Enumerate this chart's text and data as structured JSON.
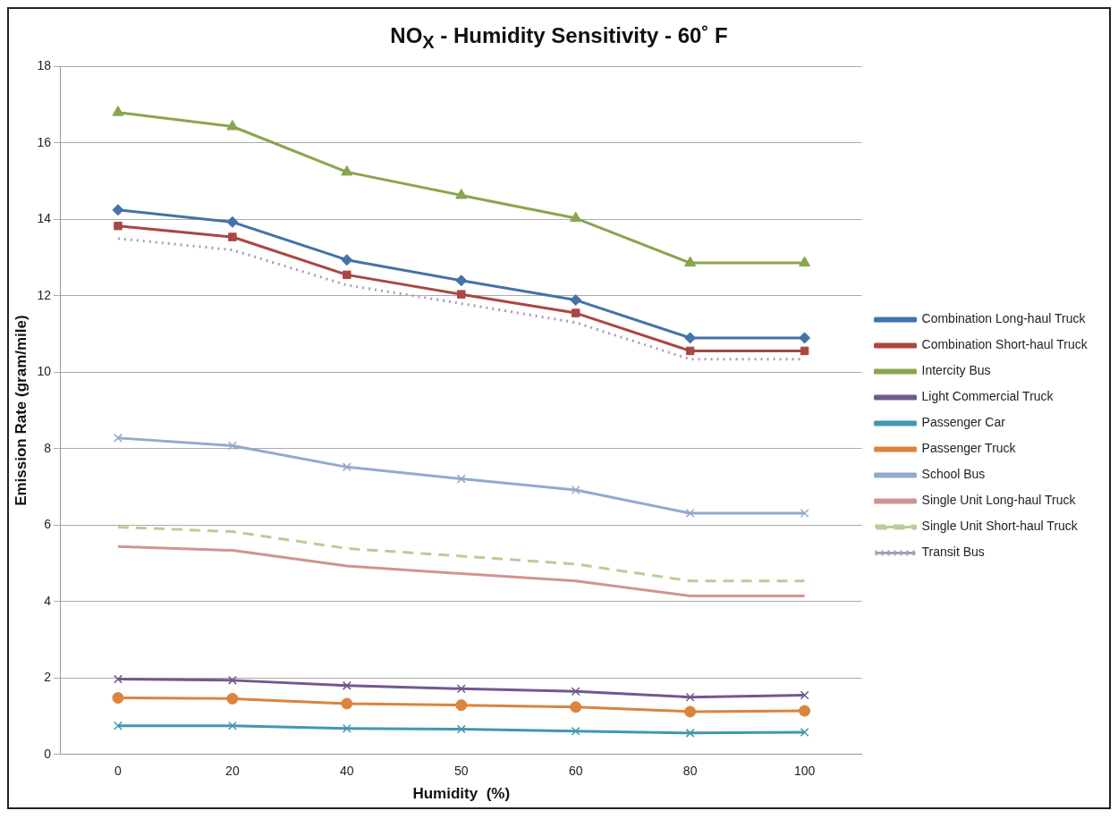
{
  "chart_data": {
    "type": "line",
    "title": "NO$_{X}$ - Humidity Sensitivity - 60˚ F",
    "xlabel": "Humidity  (%)",
    "ylabel": "Emission Rate (gram/mile)",
    "categories": [
      "0",
      "20",
      "40",
      "50",
      "60",
      "80",
      "100"
    ],
    "ylim": [
      0,
      18
    ],
    "yticks": [
      0,
      2,
      4,
      6,
      8,
      10,
      12,
      14,
      16,
      18
    ],
    "grid": "y",
    "legend": "right",
    "series": [
      {
        "name": "Combination Long-haul Truck",
        "color": "#4572a7",
        "marker": "diamond",
        "line_style": "solid",
        "values": [
          14.25,
          13.93,
          12.94,
          12.4,
          11.89,
          10.9,
          10.9
        ]
      },
      {
        "name": "Combination Short-haul Truck",
        "color": "#aa4643",
        "marker": "square",
        "line_style": "solid",
        "values": [
          13.83,
          13.54,
          12.55,
          12.04,
          11.55,
          10.56,
          10.56
        ]
      },
      {
        "name": "Intercity Bus",
        "color": "#89a54e",
        "marker": "triangle",
        "line_style": "solid",
        "values": [
          16.8,
          16.43,
          15.24,
          14.63,
          14.03,
          12.86,
          12.86
        ]
      },
      {
        "name": "Light Commercial Truck",
        "color": "#71588f",
        "marker": "cross",
        "line_style": "solid",
        "values": [
          1.97,
          1.94,
          1.8,
          1.72,
          1.65,
          1.5,
          1.55
        ]
      },
      {
        "name": "Passenger Car",
        "color": "#4198af",
        "marker": "cross",
        "line_style": "solid",
        "values": [
          0.75,
          0.75,
          0.68,
          0.66,
          0.61,
          0.56,
          0.58
        ]
      },
      {
        "name": "Passenger Truck",
        "color": "#db843d",
        "marker": "circle",
        "line_style": "solid",
        "values": [
          1.48,
          1.46,
          1.33,
          1.29,
          1.24,
          1.12,
          1.14
        ]
      },
      {
        "name": "School Bus",
        "color": "#93a9cf",
        "marker": "cross",
        "line_style": "solid",
        "values": [
          8.28,
          8.08,
          7.52,
          7.21,
          6.92,
          6.31,
          6.31
        ]
      },
      {
        "name": "Single Unit Long-haul Truck",
        "color": "#d19392",
        "marker": "none",
        "line_style": "solid",
        "values": [
          5.44,
          5.34,
          4.93,
          4.73,
          4.54,
          4.15,
          4.15
        ]
      },
      {
        "name": "Single Unit Short-haul Truck",
        "color": "#b9cd96",
        "marker": "none",
        "line_style": "dashed",
        "values": [
          5.95,
          5.83,
          5.39,
          5.19,
          4.98,
          4.54,
          4.54
        ]
      },
      {
        "name": "Transit Bus",
        "color": "#a99bbd",
        "marker": "none",
        "line_style": "dotted",
        "values": [
          13.5,
          13.2,
          12.28,
          11.8,
          11.3,
          10.34,
          10.34
        ]
      }
    ]
  }
}
